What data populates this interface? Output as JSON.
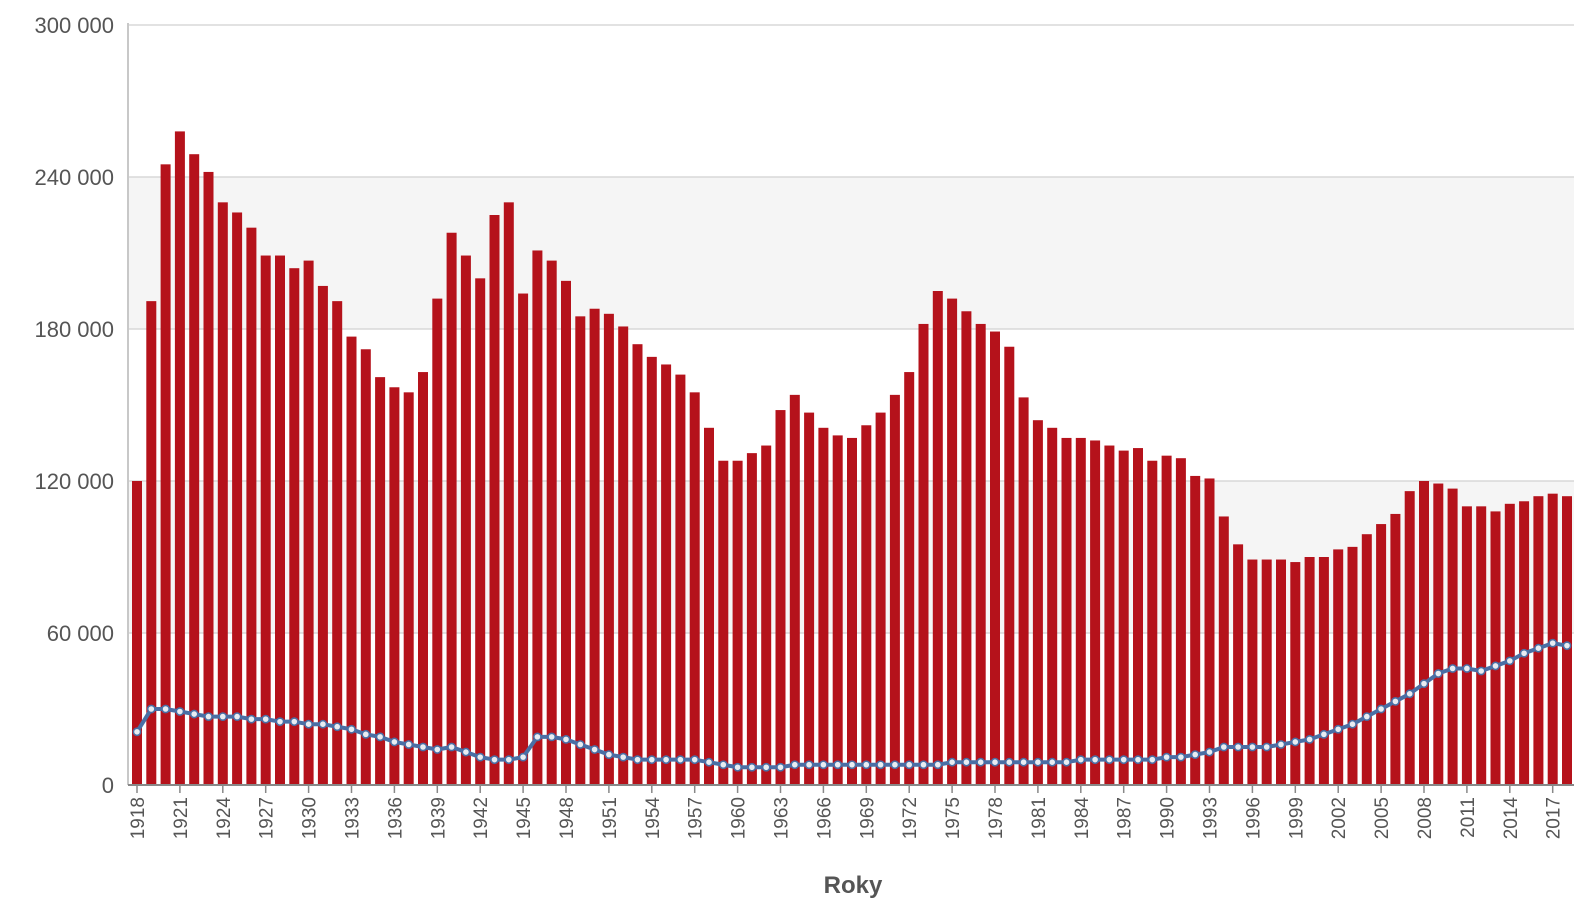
{
  "chart_data": {
    "type": "bar",
    "title": "",
    "xlabel": "Roky",
    "ylabel": "",
    "ylim": [
      0,
      300000
    ],
    "yticks": [
      0,
      60000,
      120000,
      180000,
      240000,
      300000
    ],
    "ytick_labels": [
      "0",
      "60 000",
      "120 000",
      "180 000",
      "240 000",
      "300 000"
    ],
    "x_tick_labels": [
      "1918",
      "1921",
      "1924",
      "1927",
      "1930",
      "1933",
      "1936",
      "1939",
      "1942",
      "1945",
      "1948",
      "1951",
      "1954",
      "1957",
      "1960",
      "1963",
      "1966",
      "1969",
      "1972",
      "1975",
      "1978",
      "1981",
      "1984",
      "1987",
      "1990",
      "1993",
      "1996",
      "1999",
      "2002",
      "2005",
      "2008",
      "2011",
      "2014",
      "2017"
    ],
    "categories": [
      1918,
      1919,
      1920,
      1921,
      1922,
      1923,
      1924,
      1925,
      1926,
      1927,
      1928,
      1929,
      1930,
      1931,
      1932,
      1933,
      1934,
      1935,
      1936,
      1937,
      1938,
      1939,
      1940,
      1941,
      1942,
      1943,
      1944,
      1945,
      1946,
      1947,
      1948,
      1949,
      1950,
      1951,
      1952,
      1953,
      1954,
      1955,
      1956,
      1957,
      1958,
      1959,
      1960,
      1961,
      1962,
      1963,
      1964,
      1965,
      1966,
      1967,
      1968,
      1969,
      1970,
      1971,
      1972,
      1973,
      1974,
      1975,
      1976,
      1977,
      1978,
      1979,
      1980,
      1981,
      1982,
      1983,
      1984,
      1985,
      1986,
      1987,
      1988,
      1989,
      1990,
      1991,
      1992,
      1993,
      1994,
      1995,
      1996,
      1997,
      1998,
      1999,
      2000,
      2001,
      2002,
      2003,
      2004,
      2005,
      2006,
      2007,
      2008,
      2009,
      2010,
      2011,
      2012,
      2013,
      2014,
      2015,
      2016,
      2017,
      2018
    ],
    "series": [
      {
        "type": "bar",
        "color": "#b5121b",
        "values": [
          120000,
          191000,
          245000,
          258000,
          249000,
          242000,
          230000,
          226000,
          220000,
          209000,
          209000,
          204000,
          207000,
          197000,
          191000,
          177000,
          172000,
          161000,
          157000,
          155000,
          163000,
          192000,
          218000,
          209000,
          200000,
          225000,
          230000,
          194000,
          211000,
          207000,
          199000,
          185000,
          188000,
          186000,
          181000,
          174000,
          169000,
          166000,
          162000,
          155000,
          141000,
          128000,
          128000,
          131000,
          134000,
          148000,
          154000,
          147000,
          141000,
          138000,
          137000,
          142000,
          147000,
          154000,
          163000,
          182000,
          195000,
          192000,
          187000,
          182000,
          179000,
          173000,
          153000,
          144000,
          141000,
          137000,
          137000,
          136000,
          134000,
          132000,
          133000,
          128000,
          130000,
          129000,
          122000,
          121000,
          106000,
          95000,
          89000,
          89000,
          89000,
          88000,
          90000,
          90000,
          93000,
          94000,
          99000,
          103000,
          107000,
          116000,
          120000,
          119000,
          117000,
          110000,
          110000,
          108000,
          111000,
          112000,
          114000,
          115000,
          114000
        ]
      },
      {
        "type": "line",
        "color": "#4a6fa5",
        "marker_color": "#e8ecf2",
        "values": [
          21000,
          30000,
          30000,
          29000,
          28000,
          27000,
          27000,
          27000,
          26000,
          26000,
          25000,
          25000,
          24000,
          24000,
          23000,
          22000,
          20000,
          19000,
          17000,
          16000,
          15000,
          14000,
          15000,
          13000,
          11000,
          10000,
          10000,
          11000,
          19000,
          19000,
          18000,
          16000,
          14000,
          12000,
          11000,
          10000,
          10000,
          10000,
          10000,
          10000,
          9000,
          8000,
          7000,
          7000,
          7000,
          7000,
          8000,
          8000,
          8000,
          8000,
          8000,
          8000,
          8000,
          8000,
          8000,
          8000,
          8000,
          9000,
          9000,
          9000,
          9000,
          9000,
          9000,
          9000,
          9000,
          9000,
          10000,
          10000,
          10000,
          10000,
          10000,
          10000,
          11000,
          11000,
          12000,
          13000,
          15000,
          15000,
          15000,
          15000,
          16000,
          17000,
          18000,
          20000,
          22000,
          24000,
          27000,
          30000,
          33000,
          36000,
          40000,
          44000,
          46000,
          46000,
          45000,
          47000,
          49000,
          52000,
          54000,
          56000,
          55000
        ]
      }
    ],
    "grid": "horizontal",
    "band_fill": "#f5f5f5",
    "gridline_color": "#d8d8d8",
    "legend": "none"
  }
}
